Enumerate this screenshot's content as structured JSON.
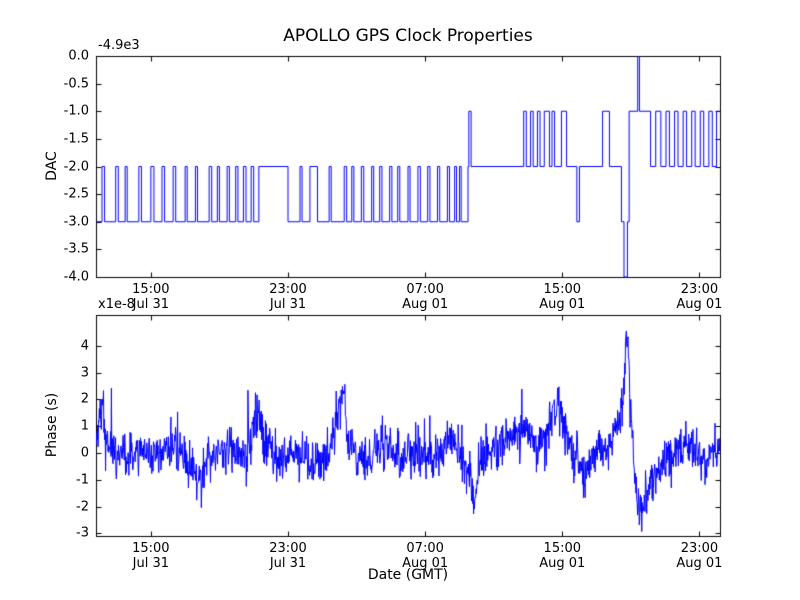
{
  "figure": {
    "title": "APOLLO GPS Clock Properties",
    "xlabel": "Date (GMT)",
    "background_color": "#ffffff",
    "line_color": "#0000ff",
    "frame_color": "#000000"
  },
  "chart_data": [
    {
      "type": "line",
      "subplot": "top",
      "title": "APOLLO GPS Clock Properties",
      "ylabel": "DAC",
      "y_offset_label": "-4.9e3",
      "x_unit": "hours since Jul 31 00:00 GMT",
      "xlim": [
        11.8,
        48.2
      ],
      "ylim": [
        -4.0,
        0.0
      ],
      "grid": false,
      "legend": "none",
      "xticks": [
        15,
        23,
        31,
        39,
        47
      ],
      "xtick_labels": [
        [
          "15:00",
          "Jul 31"
        ],
        [
          "23:00",
          "Jul 31"
        ],
        [
          "07:00",
          "Aug 01"
        ],
        [
          "15:00",
          "Aug 01"
        ],
        [
          "23:00",
          "Aug 01"
        ]
      ],
      "yticks": [
        0.0,
        -0.5,
        -1.0,
        -1.5,
        -2.0,
        -2.5,
        -3.0,
        -3.5,
        -4.0
      ],
      "ytick_labels": [
        "0.0",
        "-0.5",
        "-1.0",
        "-1.5",
        "-2.0",
        "-2.5",
        "-3.0",
        "-3.5",
        "-4.0"
      ],
      "render": "step",
      "step_points": [
        [
          11.8,
          -3
        ],
        [
          12.15,
          -2
        ],
        [
          12.3,
          -3
        ],
        [
          12.95,
          -2
        ],
        [
          13.1,
          -3
        ],
        [
          13.5,
          -2
        ],
        [
          13.62,
          -3
        ],
        [
          14.3,
          -2
        ],
        [
          14.45,
          -3
        ],
        [
          15.0,
          -2
        ],
        [
          15.18,
          -3
        ],
        [
          15.65,
          -2
        ],
        [
          15.8,
          -3
        ],
        [
          16.3,
          -2
        ],
        [
          16.45,
          -3
        ],
        [
          17.0,
          -2
        ],
        [
          17.12,
          -3
        ],
        [
          17.6,
          -2
        ],
        [
          17.72,
          -3
        ],
        [
          18.4,
          -2
        ],
        [
          18.55,
          -3
        ],
        [
          18.88,
          -2
        ],
        [
          19.0,
          -3
        ],
        [
          19.45,
          -2
        ],
        [
          19.58,
          -3
        ],
        [
          19.95,
          -2
        ],
        [
          20.08,
          -3
        ],
        [
          20.4,
          -2
        ],
        [
          20.55,
          -3
        ],
        [
          20.85,
          -2
        ],
        [
          21.0,
          -3
        ],
        [
          21.3,
          -2
        ],
        [
          23.0,
          -3
        ],
        [
          23.7,
          -2
        ],
        [
          23.82,
          -3
        ],
        [
          24.28,
          -2
        ],
        [
          24.72,
          -3
        ],
        [
          25.4,
          -2
        ],
        [
          25.52,
          -3
        ],
        [
          26.28,
          -2
        ],
        [
          26.42,
          -3
        ],
        [
          26.72,
          -2
        ],
        [
          26.84,
          -3
        ],
        [
          27.28,
          -2
        ],
        [
          27.42,
          -3
        ],
        [
          27.88,
          -2
        ],
        [
          28.0,
          -3
        ],
        [
          28.35,
          -2
        ],
        [
          28.48,
          -3
        ],
        [
          28.93,
          -2
        ],
        [
          29.06,
          -3
        ],
        [
          29.4,
          -2
        ],
        [
          29.52,
          -3
        ],
        [
          30.0,
          -2
        ],
        [
          30.12,
          -3
        ],
        [
          30.58,
          -2
        ],
        [
          30.72,
          -3
        ],
        [
          31.15,
          -2
        ],
        [
          31.28,
          -3
        ],
        [
          31.72,
          -2
        ],
        [
          31.85,
          -3
        ],
        [
          32.3,
          -2
        ],
        [
          32.42,
          -3
        ],
        [
          32.72,
          -2
        ],
        [
          32.83,
          -3
        ],
        [
          33.0,
          -2
        ],
        [
          33.1,
          -3
        ],
        [
          33.5,
          -2
        ],
        [
          33.55,
          -1
        ],
        [
          33.68,
          -2
        ],
        [
          36.75,
          -1
        ],
        [
          36.9,
          -2
        ],
        [
          37.15,
          -1
        ],
        [
          37.3,
          -2
        ],
        [
          37.55,
          -1
        ],
        [
          37.7,
          -2
        ],
        [
          37.95,
          -1
        ],
        [
          38.25,
          -2
        ],
        [
          38.4,
          -1
        ],
        [
          38.55,
          -2
        ],
        [
          38.95,
          -1
        ],
        [
          39.25,
          -2
        ],
        [
          39.85,
          -3
        ],
        [
          40.0,
          -2
        ],
        [
          41.35,
          -1
        ],
        [
          41.75,
          -2
        ],
        [
          42.45,
          -3
        ],
        [
          42.6,
          -4
        ],
        [
          42.8,
          -3
        ],
        [
          42.9,
          -1
        ],
        [
          43.4,
          0
        ],
        [
          43.5,
          -1
        ],
        [
          44.15,
          -2
        ],
        [
          44.45,
          -1
        ],
        [
          44.75,
          -2
        ],
        [
          45.05,
          -1
        ],
        [
          45.25,
          -2
        ],
        [
          45.55,
          -1
        ],
        [
          45.75,
          -2
        ],
        [
          46.05,
          -1
        ],
        [
          46.25,
          -2
        ],
        [
          46.55,
          -1
        ],
        [
          46.75,
          -2
        ],
        [
          47.05,
          -1
        ],
        [
          47.25,
          -2
        ],
        [
          47.55,
          -1
        ],
        [
          47.75,
          -2
        ],
        [
          48.0,
          -1
        ]
      ]
    },
    {
      "type": "line",
      "subplot": "bottom",
      "ylabel": "Phase (s)",
      "xlabel": "Date (GMT)",
      "y_multiplier_label": "x1e-8",
      "y_unit": "1e-8 s",
      "x_unit": "hours since Jul 31 00:00 GMT",
      "xlim": [
        11.8,
        48.2
      ],
      "ylim": [
        -3.1,
        5.15
      ],
      "grid": false,
      "legend": "none",
      "xticks": [
        15,
        23,
        31,
        39,
        47
      ],
      "xtick_labels": [
        [
          "15:00",
          "Jul 31"
        ],
        [
          "23:00",
          "Jul 31"
        ],
        [
          "07:00",
          "Aug 01"
        ],
        [
          "15:00",
          "Aug 01"
        ],
        [
          "23:00",
          "Aug 01"
        ]
      ],
      "yticks": [
        4,
        3,
        2,
        1,
        0,
        -1,
        -2,
        -3
      ],
      "ytick_labels": [
        "4",
        "3",
        "2",
        "1",
        "0",
        "-1",
        "-2",
        "-3"
      ],
      "render": "noisy-line",
      "mean_keypoints": [
        [
          11.8,
          0.5
        ],
        [
          12.0,
          1.2
        ],
        [
          12.2,
          2.1
        ],
        [
          12.4,
          0.3
        ],
        [
          13.5,
          -0.2
        ],
        [
          14.5,
          0.2
        ],
        [
          15.5,
          -0.1
        ],
        [
          16.5,
          0.3
        ],
        [
          17.2,
          -0.4
        ],
        [
          18.0,
          -1.1
        ],
        [
          18.3,
          -0.2
        ],
        [
          19.5,
          0.2
        ],
        [
          20.5,
          -0.2
        ],
        [
          21.3,
          1.6
        ],
        [
          21.6,
          0.4
        ],
        [
          22.5,
          -0.3
        ],
        [
          23.5,
          0.0
        ],
        [
          24.5,
          -0.4
        ],
        [
          25.5,
          0.3
        ],
        [
          26.2,
          2.4
        ],
        [
          26.5,
          0.4
        ],
        [
          27.5,
          -0.5
        ],
        [
          28.5,
          0.2
        ],
        [
          29.5,
          -0.2
        ],
        [
          30.5,
          0.1
        ],
        [
          31.5,
          -0.3
        ],
        [
          32.5,
          0.4
        ],
        [
          33.5,
          -0.6
        ],
        [
          33.9,
          -1.8
        ],
        [
          34.2,
          -0.3
        ],
        [
          35.0,
          0.2
        ],
        [
          36.0,
          0.6
        ],
        [
          36.8,
          1.0
        ],
        [
          37.2,
          0.3
        ],
        [
          38.0,
          0.5
        ],
        [
          38.8,
          2.2
        ],
        [
          39.1,
          0.8
        ],
        [
          39.6,
          0.0
        ],
        [
          40.2,
          -0.8
        ],
        [
          40.8,
          -0.2
        ],
        [
          41.5,
          0.2
        ],
        [
          42.2,
          0.8
        ],
        [
          42.55,
          2.0
        ],
        [
          42.75,
          4.5
        ],
        [
          42.95,
          2.5
        ],
        [
          43.2,
          -0.5
        ],
        [
          43.5,
          -2.3
        ],
        [
          43.8,
          -1.8
        ],
        [
          44.2,
          -1.0
        ],
        [
          44.8,
          -0.4
        ],
        [
          45.5,
          0.0
        ],
        [
          46.5,
          0.2
        ],
        [
          47.5,
          -0.2
        ],
        [
          48.2,
          0.2
        ]
      ],
      "noise": {
        "std": 0.42,
        "seed": 12345,
        "n_points": 1500,
        "spike_prob": 0.05,
        "spike_amp": 1.2
      }
    }
  ]
}
